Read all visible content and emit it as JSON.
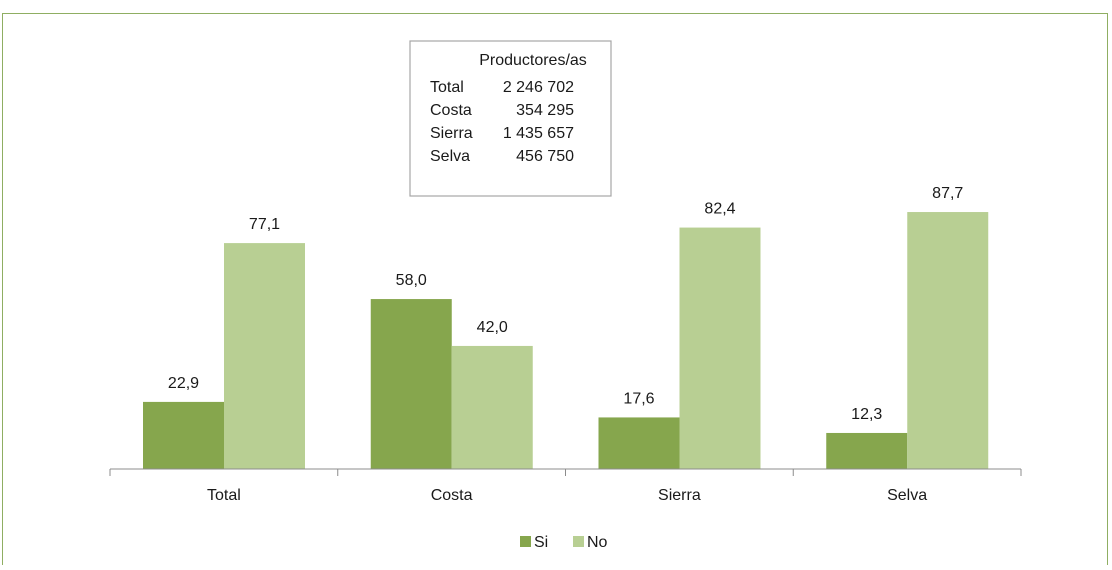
{
  "chart_data": {
    "type": "bar",
    "categories": [
      "Total",
      "Costa",
      "Sierra",
      "Selva"
    ],
    "series": [
      {
        "name": "Si",
        "values": [
          22.9,
          58.0,
          17.6,
          12.3
        ],
        "labels": [
          "22,9",
          "58,0",
          "17,6",
          "12,3"
        ],
        "color": "#86a64d"
      },
      {
        "name": "No",
        "values": [
          77.1,
          42.0,
          82.4,
          87.7
        ],
        "labels": [
          "77,1",
          "42,0",
          "82,4",
          "87,7"
        ],
        "color": "#b8cf93"
      }
    ],
    "ylim": [
      0,
      100
    ],
    "grid": false,
    "legend_position": "bottom",
    "info_box": {
      "heading": "Productores/as",
      "rows": [
        {
          "label": "Total",
          "value": "2 246 702"
        },
        {
          "label": "Costa",
          "value": "354 295"
        },
        {
          "label": "Sierra",
          "value": "1 435 657"
        },
        {
          "label": "Selva",
          "value": "456 750"
        }
      ]
    }
  },
  "colors": {
    "frame": "#8fae62",
    "axis": "#8c8c8c"
  }
}
